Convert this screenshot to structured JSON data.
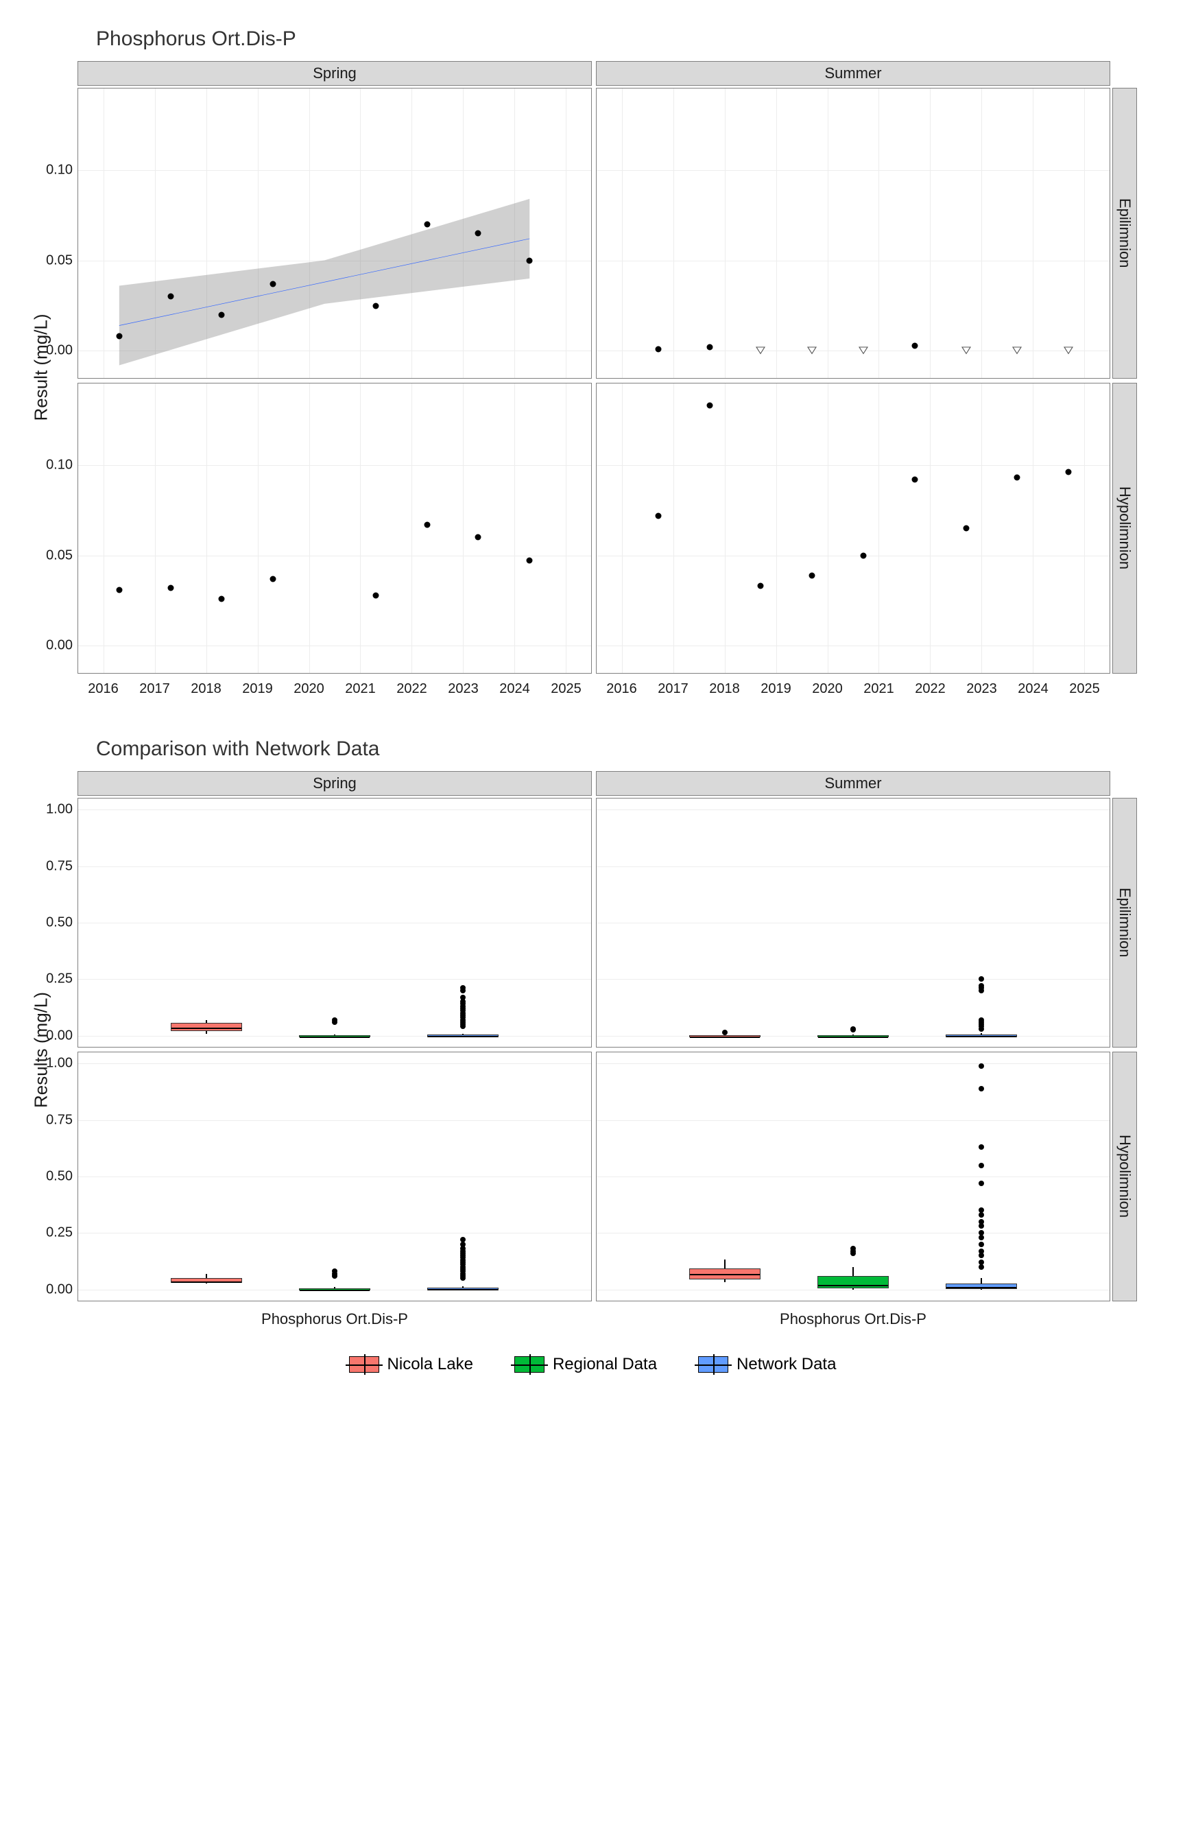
{
  "scatter": {
    "title": "Phosphorus Ort.Dis-P",
    "y_label": "Result (mg/L)",
    "col_facets": [
      "Spring",
      "Summer"
    ],
    "row_facets": [
      "Epilimnion",
      "Hypolimnion"
    ],
    "x_ticks": [
      2016,
      2017,
      2018,
      2019,
      2020,
      2021,
      2022,
      2023,
      2024,
      2025
    ],
    "y_ticks": [
      0.0,
      0.05,
      0.1
    ],
    "y_tick_labels": [
      "0.00",
      "0.05",
      "0.10"
    ],
    "xlim": [
      2015.5,
      2025.5
    ],
    "ylim": [
      -0.015,
      0.145
    ],
    "trend_color": "#3366ff",
    "ribbon_color": "rgba(120,120,120,0.35)",
    "panels": {
      "spring_epi": {
        "points": [
          {
            "x": 2016.3,
            "y": 0.008
          },
          {
            "x": 2017.3,
            "y": 0.03
          },
          {
            "x": 2018.3,
            "y": 0.02
          },
          {
            "x": 2019.3,
            "y": 0.037
          },
          {
            "x": 2021.3,
            "y": 0.025
          },
          {
            "x": 2022.3,
            "y": 0.07
          },
          {
            "x": 2023.3,
            "y": 0.065
          },
          {
            "x": 2024.3,
            "y": 0.05
          }
        ],
        "trend": {
          "x0": 2016.3,
          "y0": 0.014,
          "x1": 2024.3,
          "y1": 0.062
        },
        "ribbon": [
          {
            "x": 2016.3,
            "hi": 0.036,
            "lo": -0.008
          },
          {
            "x": 2020.3,
            "hi": 0.05,
            "lo": 0.026
          },
          {
            "x": 2024.3,
            "hi": 0.084,
            "lo": 0.04
          }
        ]
      },
      "summer_epi": {
        "points": [
          {
            "x": 2016.7,
            "y": 0.001
          },
          {
            "x": 2017.7,
            "y": 0.002
          },
          {
            "x": 2021.7,
            "y": 0.003
          }
        ],
        "open_points": [
          {
            "x": 2018.7,
            "y": 0.0
          },
          {
            "x": 2019.7,
            "y": 0.0
          },
          {
            "x": 2020.7,
            "y": 0.0
          },
          {
            "x": 2022.7,
            "y": 0.0
          },
          {
            "x": 2023.7,
            "y": 0.0
          },
          {
            "x": 2024.7,
            "y": 0.0
          }
        ]
      },
      "spring_hypo": {
        "points": [
          {
            "x": 2016.3,
            "y": 0.031
          },
          {
            "x": 2017.3,
            "y": 0.032
          },
          {
            "x": 2018.3,
            "y": 0.026
          },
          {
            "x": 2019.3,
            "y": 0.037
          },
          {
            "x": 2021.3,
            "y": 0.028
          },
          {
            "x": 2022.3,
            "y": 0.067
          },
          {
            "x": 2023.3,
            "y": 0.06
          },
          {
            "x": 2024.3,
            "y": 0.047
          }
        ]
      },
      "summer_hypo": {
        "points": [
          {
            "x": 2016.7,
            "y": 0.072
          },
          {
            "x": 2017.7,
            "y": 0.133
          },
          {
            "x": 2018.7,
            "y": 0.033
          },
          {
            "x": 2019.7,
            "y": 0.039
          },
          {
            "x": 2020.7,
            "y": 0.05
          },
          {
            "x": 2021.7,
            "y": 0.092
          },
          {
            "x": 2022.7,
            "y": 0.065
          },
          {
            "x": 2023.7,
            "y": 0.093
          },
          {
            "x": 2024.7,
            "y": 0.096
          }
        ]
      }
    }
  },
  "box": {
    "title": "Comparison with Network Data",
    "y_label": "Results (mg/L)",
    "col_facets": [
      "Spring",
      "Summer"
    ],
    "row_facets": [
      "Epilimnion",
      "Hypolimnion"
    ],
    "x_category": "Phosphorus Ort.Dis-P",
    "y_ticks": [
      0.0,
      0.25,
      0.5,
      0.75,
      1.0
    ],
    "y_tick_labels": [
      "0.00",
      "0.25",
      "0.50",
      "0.75",
      "1.00"
    ],
    "ylim": [
      -0.05,
      1.05
    ],
    "groups": [
      "Nicola Lake",
      "Regional Data",
      "Network Data"
    ],
    "group_colors": {
      "Nicola Lake": "#f8766d",
      "Regional Data": "#00ba38",
      "Network Data": "#619cff"
    },
    "x_positions": [
      0.25,
      0.5,
      0.75
    ],
    "box_width": 0.14,
    "panels": {
      "spring_epi": [
        {
          "q1": 0.02,
          "med": 0.035,
          "q3": 0.055,
          "lo": 0.008,
          "hi": 0.07,
          "out": []
        },
        {
          "q1": 0.0,
          "med": 0.001,
          "q3": 0.003,
          "lo": 0.0,
          "hi": 0.005,
          "out": [
            0.06,
            0.07
          ]
        },
        {
          "q1": 0.0,
          "med": 0.001,
          "q3": 0.004,
          "lo": 0.0,
          "hi": 0.008,
          "out": [
            0.04,
            0.05,
            0.06,
            0.07,
            0.08,
            0.09,
            0.1,
            0.11,
            0.12,
            0.13,
            0.14,
            0.15,
            0.17,
            0.2,
            0.21
          ]
        }
      ],
      "summer_epi": [
        {
          "q1": 0.0,
          "med": 0.001,
          "q3": 0.002,
          "lo": 0.0,
          "hi": 0.003,
          "out": [
            0.015
          ]
        },
        {
          "q1": 0.0,
          "med": 0.001,
          "q3": 0.003,
          "lo": 0.0,
          "hi": 0.006,
          "out": [
            0.025,
            0.03
          ]
        },
        {
          "q1": 0.0,
          "med": 0.001,
          "q3": 0.005,
          "lo": 0.0,
          "hi": 0.01,
          "out": [
            0.03,
            0.04,
            0.05,
            0.06,
            0.07,
            0.2,
            0.21,
            0.22,
            0.25
          ]
        }
      ],
      "spring_hypo": [
        {
          "q1": 0.028,
          "med": 0.035,
          "q3": 0.05,
          "lo": 0.026,
          "hi": 0.067,
          "out": []
        },
        {
          "q1": 0.0,
          "med": 0.002,
          "q3": 0.006,
          "lo": 0.0,
          "hi": 0.01,
          "out": [
            0.06,
            0.07,
            0.08
          ]
        },
        {
          "q1": 0.0,
          "med": 0.002,
          "q3": 0.008,
          "lo": 0.0,
          "hi": 0.015,
          "out": [
            0.05,
            0.06,
            0.07,
            0.08,
            0.09,
            0.1,
            0.11,
            0.12,
            0.13,
            0.14,
            0.15,
            0.16,
            0.17,
            0.18,
            0.2,
            0.22
          ]
        }
      ],
      "summer_hypo": [
        {
          "q1": 0.045,
          "med": 0.07,
          "q3": 0.093,
          "lo": 0.033,
          "hi": 0.133,
          "out": []
        },
        {
          "q1": 0.005,
          "med": 0.02,
          "q3": 0.06,
          "lo": 0.0,
          "hi": 0.1,
          "out": [
            0.16,
            0.17,
            0.18
          ]
        },
        {
          "q1": 0.002,
          "med": 0.01,
          "q3": 0.025,
          "lo": 0.0,
          "hi": 0.05,
          "out": [
            0.1,
            0.12,
            0.15,
            0.17,
            0.2,
            0.23,
            0.25,
            0.28,
            0.3,
            0.33,
            0.35,
            0.47,
            0.55,
            0.63,
            0.89,
            0.99
          ]
        }
      ]
    }
  },
  "legend": {
    "items": [
      {
        "label": "Nicola Lake",
        "color": "#f8766d"
      },
      {
        "label": "Regional Data",
        "color": "#00ba38"
      },
      {
        "label": "Network Data",
        "color": "#619cff"
      }
    ]
  },
  "style": {
    "bg": "#ffffff",
    "grid": "#ededed",
    "axis": "#808080",
    "text": "#1a1a1a",
    "point": "#000000",
    "title_fontsize": 30,
    "tick_fontsize": 20,
    "scatter_panel_height": 430,
    "box_panel_height": 370
  }
}
